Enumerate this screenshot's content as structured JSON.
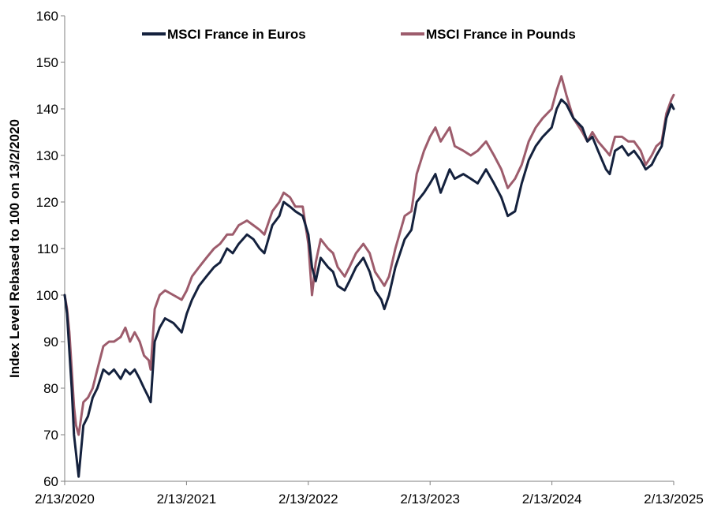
{
  "chart_data": {
    "type": "line",
    "title": "",
    "xlabel": "",
    "ylabel": "Index Level Rebased to 100 on 13/2/2020",
    "ylim": [
      60,
      160
    ],
    "yticks": [
      60,
      70,
      80,
      90,
      100,
      110,
      120,
      130,
      140,
      150,
      160
    ],
    "xlim": [
      "2020-02-13",
      "2025-02-13"
    ],
    "xtick_labels": [
      "2/13/2020",
      "2/13/2021",
      "2/13/2022",
      "2/13/2023",
      "2/13/2024",
      "2/13/2025"
    ],
    "grid": false,
    "legend_position": "top",
    "series": [
      {
        "name": "MSCI France in Euros",
        "color": "#14213d",
        "x": [
          "2020-02-13",
          "2020-02-20",
          "2020-02-27",
          "2020-03-05",
          "2020-03-12",
          "2020-03-18",
          "2020-03-26",
          "2020-04-09",
          "2020-04-23",
          "2020-05-07",
          "2020-05-21",
          "2020-06-08",
          "2020-06-25",
          "2020-07-10",
          "2020-07-30",
          "2020-08-13",
          "2020-08-27",
          "2020-09-10",
          "2020-09-25",
          "2020-10-08",
          "2020-10-22",
          "2020-10-28",
          "2020-11-09",
          "2020-11-24",
          "2020-12-10",
          "2021-01-04",
          "2021-01-29",
          "2021-02-13",
          "2021-03-01",
          "2021-03-22",
          "2021-04-13",
          "2021-05-06",
          "2021-05-24",
          "2021-06-14",
          "2021-07-01",
          "2021-07-19",
          "2021-08-13",
          "2021-09-01",
          "2021-09-20",
          "2021-10-04",
          "2021-10-28",
          "2021-11-18",
          "2021-12-01",
          "2021-12-20",
          "2022-01-05",
          "2022-01-27",
          "2022-02-13",
          "2022-02-24",
          "2022-03-07",
          "2022-03-22",
          "2022-04-13",
          "2022-04-28",
          "2022-05-12",
          "2022-06-02",
          "2022-06-16",
          "2022-07-06",
          "2022-07-28",
          "2022-08-16",
          "2022-09-01",
          "2022-09-20",
          "2022-09-29",
          "2022-10-13",
          "2022-11-01",
          "2022-11-29",
          "2022-12-19",
          "2023-01-04",
          "2023-01-26",
          "2023-02-13",
          "2023-03-01",
          "2023-03-17",
          "2023-04-13",
          "2023-04-28",
          "2023-05-24",
          "2023-06-15",
          "2023-07-06",
          "2023-07-31",
          "2023-08-24",
          "2023-09-15",
          "2023-10-04",
          "2023-10-26",
          "2023-11-15",
          "2023-12-06",
          "2023-12-27",
          "2024-01-17",
          "2024-02-13",
          "2024-02-28",
          "2024-03-13",
          "2024-03-28",
          "2024-04-18",
          "2024-05-15",
          "2024-05-30",
          "2024-06-14",
          "2024-07-01",
          "2024-07-25",
          "2024-08-05",
          "2024-08-21",
          "2024-09-11",
          "2024-09-30",
          "2024-10-17",
          "2024-11-06",
          "2024-11-21",
          "2024-12-09",
          "2024-12-23",
          "2025-01-08",
          "2025-01-22",
          "2025-02-06",
          "2025-02-13"
        ],
        "y": [
          100,
          96,
          88,
          80,
          70,
          66,
          61,
          72,
          74,
          78,
          80,
          84,
          83,
          84,
          82,
          84,
          83,
          84,
          82,
          80,
          78,
          77,
          90,
          93,
          95,
          94,
          92,
          96,
          99,
          102,
          104,
          106,
          107,
          110,
          109,
          111,
          113,
          112,
          110,
          109,
          115,
          117,
          120,
          119,
          118,
          117,
          113,
          106,
          103,
          108,
          106,
          105,
          102,
          101,
          103,
          106,
          108,
          105,
          101,
          99,
          97,
          100,
          106,
          112,
          114,
          120,
          122,
          124,
          126,
          122,
          127,
          125,
          126,
          125,
          124,
          127,
          124,
          121,
          117,
          118,
          124,
          129,
          132,
          134,
          136,
          140,
          142,
          141,
          138,
          136,
          133,
          134,
          131,
          127,
          126,
          131,
          132,
          130,
          131,
          129,
          127,
          128,
          130,
          132,
          138,
          141,
          140
        ]
      },
      {
        "name": "MSCI France in Pounds",
        "color": "#9d5c6c",
        "x": [
          "2020-02-13",
          "2020-02-20",
          "2020-02-27",
          "2020-03-05",
          "2020-03-12",
          "2020-03-18",
          "2020-03-26",
          "2020-04-09",
          "2020-04-23",
          "2020-05-07",
          "2020-05-21",
          "2020-06-08",
          "2020-06-25",
          "2020-07-10",
          "2020-07-30",
          "2020-08-13",
          "2020-08-27",
          "2020-09-10",
          "2020-09-25",
          "2020-10-08",
          "2020-10-22",
          "2020-10-28",
          "2020-11-09",
          "2020-11-24",
          "2020-12-10",
          "2021-01-04",
          "2021-01-29",
          "2021-02-13",
          "2021-03-01",
          "2021-03-22",
          "2021-04-13",
          "2021-05-06",
          "2021-05-24",
          "2021-06-14",
          "2021-07-01",
          "2021-07-19",
          "2021-08-13",
          "2021-09-01",
          "2021-09-20",
          "2021-10-04",
          "2021-10-28",
          "2021-11-18",
          "2021-12-01",
          "2021-12-20",
          "2022-01-05",
          "2022-01-27",
          "2022-02-13",
          "2022-02-24",
          "2022-03-07",
          "2022-03-22",
          "2022-04-13",
          "2022-04-28",
          "2022-05-12",
          "2022-06-02",
          "2022-06-16",
          "2022-07-06",
          "2022-07-28",
          "2022-08-16",
          "2022-09-01",
          "2022-09-20",
          "2022-09-29",
          "2022-10-13",
          "2022-11-01",
          "2022-11-29",
          "2022-12-19",
          "2023-01-04",
          "2023-01-26",
          "2023-02-13",
          "2023-03-01",
          "2023-03-17",
          "2023-04-13",
          "2023-04-28",
          "2023-05-24",
          "2023-06-15",
          "2023-07-06",
          "2023-07-31",
          "2023-08-24",
          "2023-09-15",
          "2023-10-04",
          "2023-10-26",
          "2023-11-15",
          "2023-12-06",
          "2023-12-27",
          "2024-01-17",
          "2024-02-13",
          "2024-02-28",
          "2024-03-13",
          "2024-03-28",
          "2024-04-18",
          "2024-05-15",
          "2024-05-30",
          "2024-06-14",
          "2024-07-01",
          "2024-07-25",
          "2024-08-05",
          "2024-08-21",
          "2024-09-11",
          "2024-09-30",
          "2024-10-17",
          "2024-11-06",
          "2024-11-21",
          "2024-12-09",
          "2024-12-23",
          "2025-01-08",
          "2025-01-22",
          "2025-02-06",
          "2025-02-13"
        ],
        "y": [
          100,
          97,
          92,
          84,
          76,
          72,
          70,
          77,
          78,
          80,
          84,
          89,
          90,
          90,
          91,
          93,
          90,
          92,
          90,
          87,
          86,
          84,
          97,
          100,
          101,
          100,
          99,
          101,
          104,
          106,
          108,
          110,
          111,
          113,
          113,
          115,
          116,
          115,
          114,
          113,
          118,
          120,
          122,
          121,
          119,
          119,
          111,
          100,
          107,
          112,
          110,
          109,
          106,
          104,
          106,
          109,
          111,
          109,
          105,
          103,
          102,
          104,
          110,
          117,
          118,
          126,
          131,
          134,
          136,
          133,
          136,
          132,
          131,
          130,
          131,
          133,
          130,
          127,
          123,
          125,
          128,
          133,
          136,
          138,
          140,
          144,
          147,
          143,
          138,
          135,
          133,
          135,
          133,
          131,
          130,
          134,
          134,
          133,
          133,
          131,
          128,
          130,
          132,
          133,
          139,
          142,
          143
        ]
      }
    ]
  }
}
